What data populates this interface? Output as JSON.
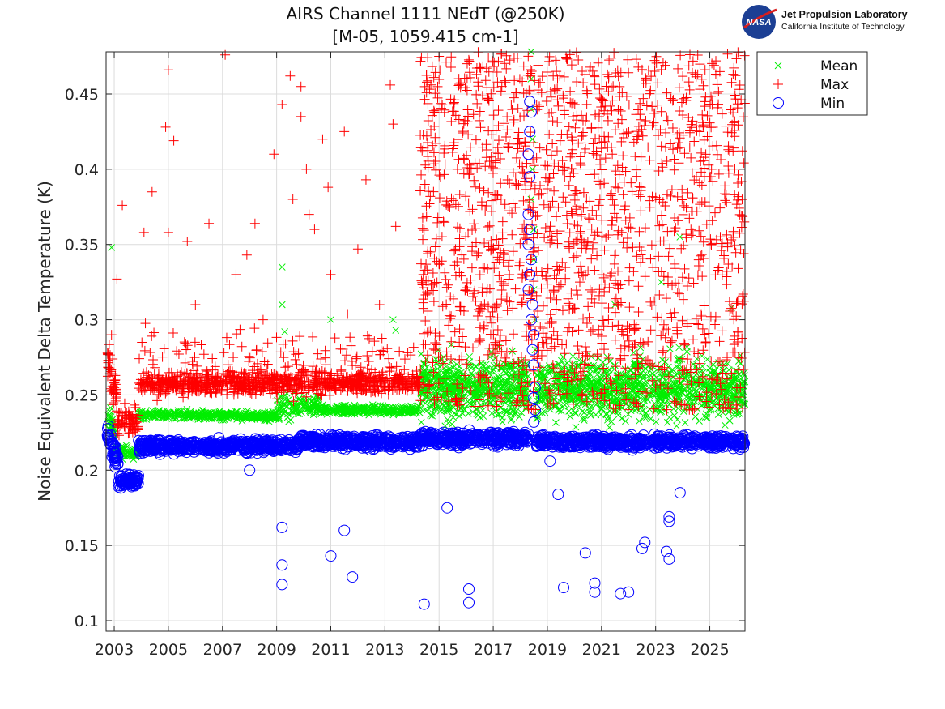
{
  "chart_data": {
    "type": "scatter",
    "title": [
      "AIRS Channel 1111 NEdT (@250K)",
      "[M-05, 1059.415 cm-1]"
    ],
    "xlabel": "",
    "ylabel": "Noise Equivalent Delta Temperature (K)",
    "xlim": [
      2002.7,
      2026.3
    ],
    "ylim": [
      0.093,
      0.478
    ],
    "xticks": [
      2003,
      2005,
      2007,
      2009,
      2011,
      2013,
      2015,
      2017,
      2019,
      2021,
      2023,
      2025
    ],
    "yticks": [
      0.1,
      0.15,
      0.2,
      0.25,
      0.3,
      0.35,
      0.4,
      0.45
    ],
    "ytick_labels": [
      "0.1",
      "0.15",
      "0.2",
      "0.25",
      "0.3",
      "0.35",
      "0.4",
      "0.45"
    ],
    "grid": true,
    "legend_position": "outside-top-right",
    "series": [
      {
        "name": "Mean",
        "marker": "x",
        "color": "#00ee00",
        "segments": [
          {
            "x": [
              2002.75,
              2003.1
            ],
            "y": [
              0.24,
              0.215
            ],
            "spread": 0.006,
            "count": 40
          },
          {
            "x": [
              2003.1,
              2003.9
            ],
            "y": [
              0.212,
              0.212
            ],
            "spread": 0.003,
            "count": 60
          },
          {
            "x": [
              2003.9,
              2009.0
            ],
            "y": [
              0.237,
              0.236
            ],
            "spread": 0.002,
            "count": 400
          },
          {
            "x": [
              2009.0,
              2010.6
            ],
            "y": [
              0.24,
              0.244
            ],
            "spread": 0.006,
            "count": 120
          },
          {
            "x": [
              2010.6,
              2014.3
            ],
            "y": [
              0.24,
              0.24
            ],
            "spread": 0.002,
            "count": 280
          },
          {
            "x": [
              2014.3,
              2018.3
            ],
            "y": [
              0.255,
              0.255
            ],
            "spread": 0.014,
            "count": 600
          },
          {
            "x": [
              2018.6,
              2026.3
            ],
            "y": [
              0.254,
              0.254
            ],
            "spread": 0.014,
            "count": 1000
          }
        ],
        "outliers": [
          [
            2002.9,
            0.348
          ],
          [
            2009.2,
            0.335
          ],
          [
            2009.2,
            0.31
          ],
          [
            2009.3,
            0.292
          ],
          [
            2011.0,
            0.3
          ],
          [
            2013.3,
            0.3
          ],
          [
            2013.4,
            0.293
          ],
          [
            2021.5,
            0.31
          ],
          [
            2023.2,
            0.325
          ],
          [
            2023.9,
            0.355
          ],
          [
            2025.8,
            0.308
          ],
          [
            2018.4,
            0.478
          ],
          [
            2018.4,
            0.46
          ],
          [
            2018.4,
            0.44
          ],
          [
            2018.45,
            0.42
          ],
          [
            2018.45,
            0.4
          ],
          [
            2018.4,
            0.38
          ],
          [
            2018.5,
            0.36
          ],
          [
            2018.5,
            0.34
          ],
          [
            2018.5,
            0.32
          ],
          [
            2018.55,
            0.3
          ],
          [
            2018.55,
            0.28
          ]
        ]
      },
      {
        "name": "Max",
        "marker": "+",
        "color": "#ff0000",
        "segments": [
          {
            "x": [
              2002.75,
              2003.1
            ],
            "y": [
              0.27,
              0.25
            ],
            "spread": 0.01,
            "count": 50
          },
          {
            "x": [
              2003.1,
              2003.9
            ],
            "y": [
              0.232,
              0.232
            ],
            "spread": 0.006,
            "count": 70
          },
          {
            "x": [
              2003.9,
              2014.3
            ],
            "y": [
              0.258,
              0.258
            ],
            "spread": 0.005,
            "count": 900
          },
          {
            "x": [
              2003.9,
              2014.3
            ],
            "y": [
              0.272,
              0.272
            ],
            "spread": 0.015,
            "count": 160
          },
          {
            "x": [
              2014.3,
              2026.3
            ],
            "y": [
              0.24,
              0.478
            ],
            "spread": 0,
            "count": 1700,
            "distribution": "uniform"
          }
        ],
        "outliers": [
          [
            2002.9,
            0.29
          ],
          [
            2003.1,
            0.327
          ],
          [
            2003.3,
            0.376
          ],
          [
            2004.1,
            0.358
          ],
          [
            2004.4,
            0.385
          ],
          [
            2004.9,
            0.428
          ],
          [
            2005.0,
            0.466
          ],
          [
            2005.2,
            0.419
          ],
          [
            2005.0,
            0.358
          ],
          [
            2005.7,
            0.352
          ],
          [
            2006.5,
            0.364
          ],
          [
            2007.1,
            0.476
          ],
          [
            2007.5,
            0.33
          ],
          [
            2007.9,
            0.343
          ],
          [
            2008.2,
            0.364
          ],
          [
            2008.9,
            0.41
          ],
          [
            2009.2,
            0.443
          ],
          [
            2009.5,
            0.462
          ],
          [
            2009.9,
            0.455
          ],
          [
            2009.9,
            0.435
          ],
          [
            2009.6,
            0.38
          ],
          [
            2010.1,
            0.4
          ],
          [
            2010.2,
            0.37
          ],
          [
            2010.4,
            0.36
          ],
          [
            2010.7,
            0.42
          ],
          [
            2010.9,
            0.388
          ],
          [
            2011.5,
            0.425
          ],
          [
            2012.3,
            0.393
          ],
          [
            2012.0,
            0.347
          ],
          [
            2013.2,
            0.456
          ],
          [
            2013.3,
            0.43
          ],
          [
            2013.4,
            0.362
          ],
          [
            2012.8,
            0.31
          ],
          [
            2011.0,
            0.33
          ],
          [
            2006.0,
            0.31
          ],
          [
            2008.5,
            0.3
          ]
        ]
      },
      {
        "name": "Min",
        "marker": "o",
        "color": "#0000ff",
        "segments": [
          {
            "x": [
              2002.75,
              2003.15
            ],
            "y": [
              0.225,
              0.205
            ],
            "spread": 0.005,
            "count": 50
          },
          {
            "x": [
              2003.15,
              2003.9
            ],
            "y": [
              0.193,
              0.193
            ],
            "spread": 0.003,
            "count": 80
          },
          {
            "x": [
              2003.9,
              2009.8
            ],
            "y": [
              0.216,
              0.216
            ],
            "spread": 0.003,
            "count": 550
          },
          {
            "x": [
              2009.8,
              2014.3
            ],
            "y": [
              0.219,
              0.219
            ],
            "spread": 0.003,
            "count": 400
          },
          {
            "x": [
              2014.3,
              2018.3
            ],
            "y": [
              0.221,
              0.221
            ],
            "spread": 0.003,
            "count": 380
          },
          {
            "x": [
              2018.6,
              2026.3
            ],
            "y": [
              0.219,
              0.219
            ],
            "spread": 0.003,
            "count": 700
          }
        ],
        "outliers": [
          [
            2008.0,
            0.2
          ],
          [
            2009.2,
            0.162
          ],
          [
            2009.2,
            0.137
          ],
          [
            2009.2,
            0.124
          ],
          [
            2011.0,
            0.143
          ],
          [
            2011.5,
            0.16
          ],
          [
            2011.8,
            0.129
          ],
          [
            2014.45,
            0.111
          ],
          [
            2015.3,
            0.175
          ],
          [
            2016.1,
            0.121
          ],
          [
            2016.1,
            0.112
          ],
          [
            2019.1,
            0.206
          ],
          [
            2019.4,
            0.184
          ],
          [
            2019.6,
            0.122
          ],
          [
            2020.4,
            0.145
          ],
          [
            2020.75,
            0.125
          ],
          [
            2020.75,
            0.119
          ],
          [
            2021.7,
            0.118
          ],
          [
            2022.0,
            0.119
          ],
          [
            2022.5,
            0.148
          ],
          [
            2022.6,
            0.152
          ],
          [
            2023.4,
            0.146
          ],
          [
            2023.5,
            0.169
          ],
          [
            2023.5,
            0.166
          ],
          [
            2023.5,
            0.141
          ],
          [
            2023.9,
            0.185
          ],
          [
            2018.35,
            0.445
          ],
          [
            2018.4,
            0.438
          ],
          [
            2018.35,
            0.425
          ],
          [
            2018.3,
            0.41
          ],
          [
            2018.35,
            0.395
          ],
          [
            2018.3,
            0.37
          ],
          [
            2018.35,
            0.36
          ],
          [
            2018.3,
            0.35
          ],
          [
            2018.4,
            0.34
          ],
          [
            2018.35,
            0.33
          ],
          [
            2018.3,
            0.32
          ],
          [
            2018.45,
            0.31
          ],
          [
            2018.4,
            0.3
          ],
          [
            2018.5,
            0.29
          ],
          [
            2018.45,
            0.28
          ],
          [
            2018.5,
            0.27
          ],
          [
            2018.55,
            0.255
          ],
          [
            2018.5,
            0.248
          ],
          [
            2018.55,
            0.24
          ],
          [
            2018.5,
            0.232
          ]
        ]
      }
    ]
  },
  "logo": {
    "org": "NASA",
    "line1": "Jet Propulsion Laboratory",
    "line2": "California Institute of Technology"
  }
}
